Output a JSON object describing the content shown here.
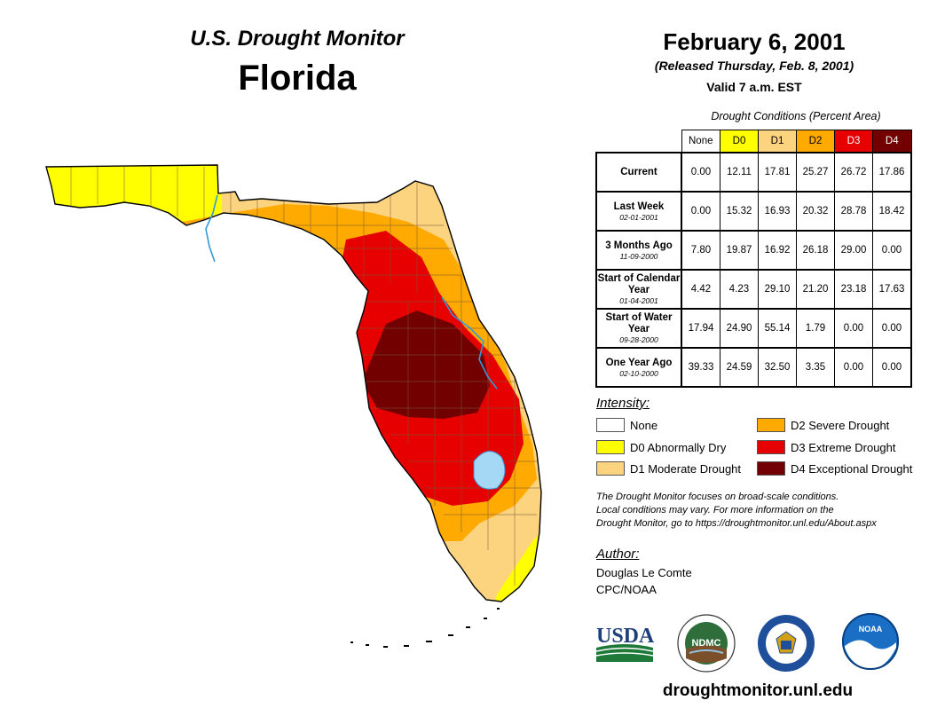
{
  "header": {
    "product": "U.S. Drought Monitor",
    "region": "Florida",
    "date": "February 6, 2001",
    "released": "(Released Thursday, Feb. 8, 2001)",
    "valid": "Valid 7 a.m. EST"
  },
  "table": {
    "caption": "Drought Conditions (Percent Area)",
    "columns": [
      "None",
      "D0",
      "D1",
      "D2",
      "D3",
      "D4"
    ],
    "column_colors": [
      "#ffffff",
      "#ffff00",
      "#fcd37f",
      "#ffaa00",
      "#e60000",
      "#730000"
    ],
    "rows": [
      {
        "label": "Current",
        "date": "",
        "values": [
          "0.00",
          "12.11",
          "17.81",
          "25.27",
          "26.72",
          "17.86"
        ]
      },
      {
        "label": "Last Week",
        "date": "02-01-2001",
        "values": [
          "0.00",
          "15.32",
          "16.93",
          "20.32",
          "28.78",
          "18.42"
        ]
      },
      {
        "label": "3 Months Ago",
        "date": "11-09-2000",
        "values": [
          "7.80",
          "19.87",
          "16.92",
          "26.18",
          "29.00",
          "0.00"
        ]
      },
      {
        "label": "Start of Calendar Year",
        "date": "01-04-2001",
        "values": [
          "4.42",
          "4.23",
          "29.10",
          "21.20",
          "23.18",
          "17.63"
        ]
      },
      {
        "label": "Start of Water Year",
        "date": "09-28-2000",
        "values": [
          "17.94",
          "24.90",
          "55.14",
          "1.79",
          "0.00",
          "0.00"
        ]
      },
      {
        "label": "One Year Ago",
        "date": "02-10-2000",
        "values": [
          "39.33",
          "24.59",
          "32.50",
          "3.35",
          "0.00",
          "0.00"
        ]
      }
    ]
  },
  "legend": {
    "title": "Intensity:",
    "items": [
      {
        "label": "None",
        "color": "#ffffff"
      },
      {
        "label": "D0 Abnormally Dry",
        "color": "#ffff00"
      },
      {
        "label": "D1 Moderate Drought",
        "color": "#fcd37f"
      },
      {
        "label": "D2 Severe Drought",
        "color": "#ffaa00"
      },
      {
        "label": "D3 Extreme Drought",
        "color": "#e60000"
      },
      {
        "label": "D4 Exceptional Drought",
        "color": "#730000"
      }
    ]
  },
  "note": {
    "line1": "The Drought Monitor focuses on broad-scale conditions.",
    "line2": "Local conditions may vary. For more information on the",
    "line3": "Drought Monitor, go to https://droughtmonitor.unl.edu/About.aspx"
  },
  "author": {
    "title": "Author:",
    "name": "Douglas Le Comte",
    "org": "CPC/NOAA"
  },
  "logos": {
    "usda": "USDA",
    "ndmc": "NDMC",
    "noaa": "NOAA"
  },
  "footer": {
    "url": "droughtmonitor.unl.edu"
  },
  "map_colors": {
    "water": "#a5d8f5",
    "river": "#3399dd",
    "county_line": "#7a5a3a"
  }
}
